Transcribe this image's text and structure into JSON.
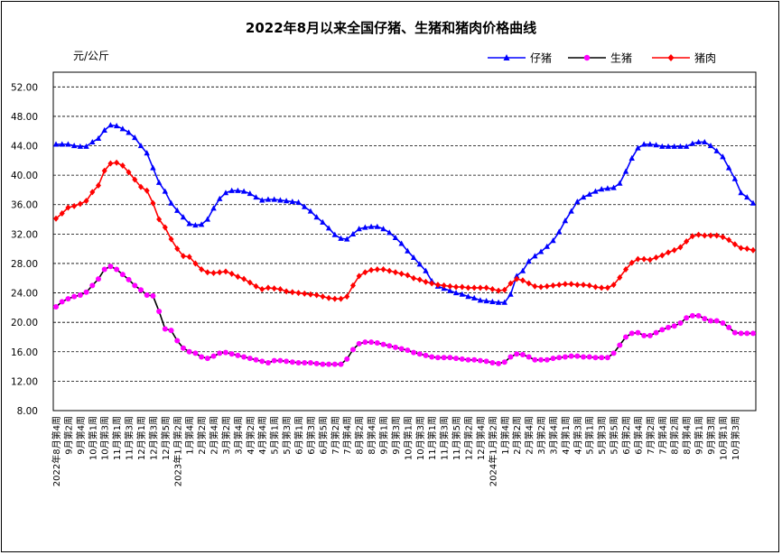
{
  "chart_data": {
    "type": "line",
    "title": "2022年8月以来全国仔猪、生猪和猪肉价格曲线",
    "unit": "元/公斤",
    "ylim": [
      8,
      54
    ],
    "yticks": [
      "8.00",
      "12.00",
      "16.00",
      "20.00",
      "24.00",
      "28.00",
      "32.00",
      "36.00",
      "40.00",
      "44.00",
      "48.00",
      "52.00"
    ],
    "yticks_values": [
      8,
      12,
      16,
      20,
      24,
      28,
      32,
      36,
      40,
      44,
      48,
      52
    ],
    "grid": true,
    "legend_position": "top-right",
    "x_tick_labels": [
      "2022年8月第4周",
      "9月第2周",
      "9月第4周",
      "10月第1周",
      "10月第3周",
      "11月第1周",
      "11月第3周",
      "12月第1周",
      "12月第3周",
      "12月第5周",
      "2023年1月第2周",
      "1月第4周",
      "2月第2周",
      "2月第4周",
      "3月第2周",
      "3月第4周",
      "4月第2周",
      "4月第4周",
      "5月第1周",
      "5月第3周",
      "6月第1周",
      "6月第3周",
      "6月第5周",
      "7月第2周",
      "7月第4周",
      "8月第2周",
      "8月第4周",
      "9月第1周",
      "9月第3周",
      "10月第1周",
      "10月第3周",
      "11月第1周",
      "11月第3周",
      "11月第5周",
      "12月第2周",
      "12月第4周",
      "2024年1月第2周",
      "1月第4周",
      "2月第2周",
      "2月第4周",
      "3月第2周",
      "3月第4周",
      "4月第1周",
      "4月第3周",
      "5月第1周",
      "5月第3周",
      "5月第5周",
      "6月第2周",
      "6月第4周",
      "7月第2周",
      "7月第4周",
      "8月第2周",
      "8月第4周",
      "9月第1周",
      "9月第3周",
      "10月第1周",
      "10月第3周"
    ],
    "series": [
      {
        "name": "仔猪",
        "color": "#0000ff",
        "marker": "triangle",
        "values": [
          44.2,
          44.2,
          44.2,
          44.0,
          43.9,
          43.9,
          44.5,
          45.0,
          46.1,
          46.8,
          46.7,
          46.3,
          45.8,
          45.1,
          44.0,
          43.0,
          41.0,
          39.0,
          37.8,
          36.2,
          35.2,
          34.3,
          33.4,
          33.2,
          33.3,
          34.0,
          35.5,
          36.8,
          37.6,
          37.9,
          37.9,
          37.8,
          37.5,
          37.0,
          36.6,
          36.7,
          36.7,
          36.6,
          36.5,
          36.4,
          36.3,
          35.7,
          35.1,
          34.3,
          33.6,
          32.8,
          31.9,
          31.4,
          31.3,
          32.0,
          32.7,
          32.9,
          33.0,
          33.0,
          32.7,
          32.2,
          31.5,
          30.7,
          29.7,
          28.8,
          27.9,
          27.0,
          25.6,
          24.9,
          24.6,
          24.3,
          24.0,
          23.8,
          23.5,
          23.3,
          23.0,
          22.9,
          22.8,
          22.7,
          22.7,
          23.8,
          26.3,
          27.0,
          28.3,
          29.0,
          29.6,
          30.3,
          31.1,
          32.3,
          33.8,
          35.1,
          36.4,
          37.0,
          37.4,
          37.8,
          38.1,
          38.2,
          38.3,
          38.9,
          40.5,
          42.3,
          43.7,
          44.2,
          44.2,
          44.1,
          43.9,
          43.9,
          43.9,
          43.9,
          43.9,
          44.3,
          44.5,
          44.5,
          44.0,
          43.3,
          42.5,
          41.0,
          39.5,
          37.6,
          37.0,
          36.2
        ]
      },
      {
        "name": "生猪",
        "color": "#ff00ff",
        "line_color": "#000000",
        "marker": "circle",
        "values": [
          22.1,
          22.8,
          23.2,
          23.5,
          23.7,
          24.1,
          25.0,
          25.9,
          27.2,
          27.6,
          27.2,
          26.5,
          25.8,
          25.0,
          24.4,
          23.7,
          23.6,
          21.5,
          19.1,
          18.9,
          17.5,
          16.5,
          16.0,
          15.8,
          15.3,
          15.1,
          15.4,
          15.8,
          15.9,
          15.7,
          15.5,
          15.3,
          15.1,
          14.9,
          14.7,
          14.5,
          14.8,
          14.8,
          14.7,
          14.6,
          14.5,
          14.5,
          14.5,
          14.4,
          14.3,
          14.3,
          14.3,
          14.3,
          15.0,
          16.3,
          17.1,
          17.3,
          17.3,
          17.2,
          17.0,
          16.8,
          16.6,
          16.4,
          16.2,
          15.9,
          15.7,
          15.5,
          15.3,
          15.2,
          15.2,
          15.2,
          15.1,
          15.0,
          14.9,
          14.9,
          14.8,
          14.7,
          14.5,
          14.4,
          14.6,
          15.3,
          15.7,
          15.6,
          15.3,
          14.9,
          14.9,
          14.9,
          15.1,
          15.2,
          15.3,
          15.4,
          15.4,
          15.3,
          15.3,
          15.2,
          15.2,
          15.2,
          15.8,
          16.9,
          18.0,
          18.5,
          18.6,
          18.2,
          18.2,
          18.6,
          19.0,
          19.3,
          19.5,
          19.9,
          20.6,
          20.9,
          20.9,
          20.5,
          20.2,
          20.2,
          19.9,
          19.3,
          18.6,
          18.5,
          18.5,
          18.5
        ]
      },
      {
        "name": "猪肉",
        "color": "#ff0000",
        "marker": "diamond",
        "values": [
          34.1,
          34.8,
          35.6,
          35.8,
          36.1,
          36.5,
          37.7,
          38.6,
          40.6,
          41.6,
          41.7,
          41.3,
          40.4,
          39.4,
          38.4,
          37.9,
          36.2,
          34.0,
          32.9,
          31.3,
          30.0,
          29.0,
          28.9,
          28.0,
          27.2,
          26.8,
          26.7,
          26.8,
          26.9,
          26.6,
          26.2,
          25.9,
          25.4,
          24.9,
          24.5,
          24.7,
          24.6,
          24.5,
          24.2,
          24.1,
          24.0,
          23.9,
          23.8,
          23.7,
          23.5,
          23.3,
          23.2,
          23.2,
          23.5,
          25.0,
          26.3,
          26.8,
          27.1,
          27.2,
          27.2,
          27.0,
          26.8,
          26.6,
          26.4,
          26.0,
          25.8,
          25.5,
          25.3,
          25.1,
          25.0,
          24.9,
          24.8,
          24.8,
          24.7,
          24.7,
          24.7,
          24.7,
          24.5,
          24.3,
          24.4,
          25.3,
          25.9,
          25.7,
          25.3,
          24.9,
          24.8,
          24.9,
          25.0,
          25.1,
          25.2,
          25.2,
          25.1,
          25.1,
          25.0,
          24.8,
          24.7,
          24.7,
          25.1,
          26.1,
          27.2,
          28.1,
          28.6,
          28.6,
          28.5,
          28.8,
          29.1,
          29.5,
          29.8,
          30.2,
          31.0,
          31.7,
          31.9,
          31.8,
          31.8,
          31.8,
          31.6,
          31.2,
          30.6,
          30.1,
          30.0,
          29.8
        ]
      }
    ]
  }
}
